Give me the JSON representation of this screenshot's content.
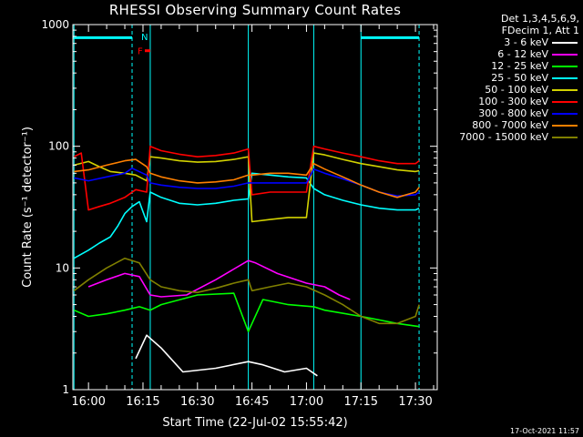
{
  "chart_data": {
    "type": "line",
    "title": "RHESSI Observing Summary Count Rates",
    "xlabel": "Start Time (22-Jul-02 15:55:42)",
    "ylabel": "Count Rate (s⁻¹ detector⁻¹)",
    "y_scale": "log",
    "ylim": [
      1,
      1000
    ],
    "y_ticks": [
      1,
      10,
      100,
      1000
    ],
    "y_tick_labels": [
      "1",
      "10",
      "100",
      "1000"
    ],
    "xlim": [
      "15:55:42",
      "17:36:00"
    ],
    "x_ticks": [
      "16:00",
      "16:15",
      "16:30",
      "16:45",
      "17:00",
      "17:15",
      "17:30"
    ],
    "legend_header": [
      "Det 1,3,4,5,6,9,",
      "FDecim 1, Att 1"
    ],
    "legend_position": "right, outside plot",
    "series": [
      {
        "name": "3 - 6 keV",
        "color": "#ffffff",
        "x": [
          "16:13",
          "16:16",
          "16:20",
          "16:26",
          "16:35",
          "16:44",
          "16:48",
          "16:54",
          "17:00",
          "17:03"
        ],
        "values": [
          1.8,
          2.8,
          2.2,
          1.4,
          1.5,
          1.7,
          1.6,
          1.4,
          1.5,
          1.3
        ]
      },
      {
        "name": "6 - 12 keV",
        "color": "#ff00ff",
        "x": [
          "16:00",
          "16:05",
          "16:10",
          "16:14",
          "16:17",
          "16:20",
          "16:27",
          "16:35",
          "16:44",
          "16:46",
          "16:52",
          "17:00",
          "17:05",
          "17:09",
          "17:12"
        ],
        "values": [
          7.0,
          8.0,
          9.0,
          8.5,
          6.0,
          5.8,
          6.0,
          8.0,
          11.5,
          11.0,
          9.0,
          7.5,
          7.0,
          6.0,
          5.5
        ]
      },
      {
        "name": "12 - 25 keV",
        "color": "#00ff00",
        "x": [
          "15:56",
          "16:00",
          "16:05",
          "16:10",
          "16:14",
          "16:17",
          "16:20",
          "16:30",
          "16:40",
          "16:44",
          "16:48",
          "16:55",
          "17:02",
          "17:05",
          "17:15",
          "17:25",
          "17:31"
        ],
        "values": [
          4.5,
          4.0,
          4.2,
          4.5,
          4.8,
          4.5,
          5.0,
          6.0,
          6.2,
          3.0,
          5.5,
          5.0,
          4.8,
          4.5,
          4.0,
          3.5,
          3.3
        ]
      },
      {
        "name": "25 - 50 keV",
        "color": "#00ffff",
        "x": [
          "15:56",
          "16:00",
          "16:03",
          "16:06",
          "16:08",
          "16:10",
          "16:12",
          "16:14",
          "16:16",
          "16:17",
          "16:20",
          "16:25",
          "16:30",
          "16:35",
          "16:40",
          "16:44",
          "16:45",
          "16:50",
          "16:55",
          "17:00",
          "17:02",
          "17:05",
          "17:10",
          "17:15",
          "17:20",
          "17:25",
          "17:30",
          "17:31"
        ],
        "values": [
          12,
          14,
          16,
          18,
          22,
          28,
          32,
          35,
          24,
          42,
          38,
          34,
          33,
          34,
          36,
          37,
          60,
          58,
          56,
          55,
          45,
          40,
          36,
          33,
          31,
          30,
          30,
          31
        ]
      },
      {
        "name": "50 - 100 keV",
        "color": "#d2d200",
        "x": [
          "15:56",
          "16:00",
          "16:03",
          "16:06",
          "16:10",
          "16:13",
          "16:16",
          "16:17",
          "16:20",
          "16:25",
          "16:30",
          "16:35",
          "16:40",
          "16:44",
          "16:45",
          "16:50",
          "16:55",
          "17:00",
          "17:02",
          "17:05",
          "17:10",
          "17:15",
          "17:20",
          "17:25",
          "17:30",
          "17:31"
        ],
        "values": [
          70,
          75,
          68,
          62,
          60,
          58,
          52,
          82,
          80,
          76,
          74,
          75,
          78,
          82,
          24,
          25,
          26,
          26,
          88,
          85,
          78,
          72,
          68,
          64,
          62,
          63
        ]
      },
      {
        "name": "100 - 300 keV",
        "color": "#ff0000",
        "x": [
          "15:56",
          "15:58",
          "16:00",
          "16:03",
          "16:06",
          "16:10",
          "16:13",
          "16:16",
          "16:17",
          "16:20",
          "16:25",
          "16:30",
          "16:35",
          "16:40",
          "16:44",
          "16:45",
          "16:50",
          "16:55",
          "17:00",
          "17:02",
          "17:05",
          "17:10",
          "17:15",
          "17:20",
          "17:25",
          "17:30",
          "17:31"
        ],
        "values": [
          82,
          88,
          30,
          32,
          34,
          38,
          44,
          42,
          100,
          92,
          86,
          82,
          84,
          88,
          95,
          40,
          42,
          42,
          42,
          100,
          95,
          88,
          82,
          76,
          72,
          72,
          76
        ]
      },
      {
        "name": "300 - 800 keV",
        "color": "#0000ff",
        "x": [
          "15:56",
          "16:00",
          "16:05",
          "16:10",
          "16:12",
          "16:16",
          "16:17",
          "16:20",
          "16:25",
          "16:30",
          "16:35",
          "16:40",
          "16:44",
          "16:45",
          "16:50",
          "16:55",
          "17:00",
          "17:02",
          "17:05",
          "17:10",
          "17:15",
          "17:20",
          "17:25",
          "17:30",
          "17:31"
        ],
        "values": [
          55,
          52,
          56,
          60,
          66,
          58,
          50,
          48,
          46,
          45,
          45,
          47,
          50,
          50,
          50,
          50,
          50,
          65,
          60,
          54,
          48,
          42,
          39,
          40,
          42
        ]
      },
      {
        "name": "800 - 7000 keV",
        "color": "#ff8000",
        "x": [
          "15:56",
          "16:00",
          "16:05",
          "16:10",
          "16:13",
          "16:16",
          "16:17",
          "16:20",
          "16:25",
          "16:30",
          "16:35",
          "16:40",
          "16:44",
          "16:45",
          "16:50",
          "16:55",
          "17:00",
          "17:02",
          "17:05",
          "17:10",
          "17:15",
          "17:20",
          "17:25",
          "17:30",
          "17:31"
        ],
        "values": [
          62,
          64,
          70,
          76,
          78,
          68,
          60,
          56,
          52,
          50,
          51,
          53,
          58,
          58,
          60,
          60,
          58,
          72,
          65,
          56,
          48,
          42,
          38,
          42,
          46
        ]
      },
      {
        "name": "7000 - 15000 keV",
        "color": "#808000",
        "x": [
          "15:56",
          "16:00",
          "16:05",
          "16:10",
          "16:14",
          "16:17",
          "16:20",
          "16:25",
          "16:30",
          "16:35",
          "16:40",
          "16:44",
          "16:45",
          "16:50",
          "16:55",
          "17:00",
          "17:05",
          "17:10",
          "17:15",
          "17:20",
          "17:25",
          "17:30",
          "17:31"
        ],
        "values": [
          6.5,
          8.0,
          10.0,
          12.0,
          11.0,
          8.0,
          7.0,
          6.5,
          6.3,
          6.8,
          7.5,
          8.0,
          6.5,
          7.0,
          7.5,
          7.0,
          6.0,
          5.0,
          4.0,
          3.5,
          3.5,
          4.0,
          5.0
        ]
      }
    ],
    "flag_bars": [
      {
        "color": "#00ffff",
        "y": 780,
        "x_start": "15:55:42",
        "x_end": "16:12"
      },
      {
        "color": "#00ffff",
        "y": 780,
        "x_start": "17:15",
        "x_end": "17:31"
      },
      {
        "color": "#ff0000",
        "y": 610,
        "x_start": "16:15:30",
        "x_end": "16:17"
      }
    ],
    "flag_labels": [
      {
        "text": "N",
        "color": "#00ffff",
        "x": "16:14:30",
        "y": 800
      },
      {
        "text": "F",
        "color": "#ff0000",
        "x": "16:13:30",
        "y": 610
      }
    ],
    "vertical_lines": [
      {
        "x": "15:56",
        "color": "#00ffff",
        "style": "solid"
      },
      {
        "x": "16:12",
        "color": "#00ffff",
        "style": "dashed"
      },
      {
        "x": "16:17",
        "color": "#00ffff",
        "style": "solid"
      },
      {
        "x": "16:44",
        "color": "#00ffff",
        "style": "solid"
      },
      {
        "x": "17:02",
        "color": "#00ffff",
        "style": "solid"
      },
      {
        "x": "17:15",
        "color": "#00ffff",
        "style": "solid"
      },
      {
        "x": "17:31",
        "color": "#00ffff",
        "style": "dashed"
      }
    ]
  },
  "footer": {
    "timestamp": "17-Oct-2021 11:57"
  }
}
